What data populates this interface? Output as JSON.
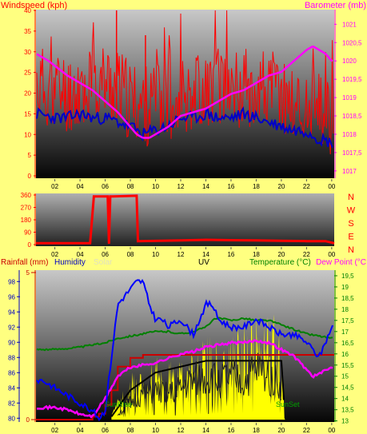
{
  "colors": {
    "background": "#ffff80",
    "wind": "#ff0000",
    "gust": "#ff0000",
    "baro": "#ff00ff",
    "dir": "#ff0000",
    "humidity": "#0000ff",
    "temp": "#008000",
    "dew": "#ff00ff",
    "rain": "#cc0000",
    "solar": "#ffff00",
    "solar_max": "#000000",
    "uv": "#000000"
  },
  "chart_data": [
    {
      "type": "line",
      "id": "wind-baro",
      "title": "",
      "left_axis_label": "Windspeed (kph)",
      "right_axis_label": "Barometer (mb)",
      "left_ticks": [
        "0",
        "5",
        "10",
        "15",
        "20",
        "25",
        "30",
        "35",
        "40"
      ],
      "left_ylim": [
        0,
        40
      ],
      "right_ticks": [
        "1017",
        "1017,5",
        "1018",
        "1018,5",
        "1019",
        "1019,5",
        "1020",
        "1020,5",
        "1021"
      ],
      "right_ylim": [
        1016.8,
        1021.4
      ],
      "x_ticks": [
        "02",
        "04",
        "06",
        "08",
        "10",
        "12",
        "14",
        "16",
        "18",
        "20",
        "22",
        "00"
      ],
      "x_range_hours": [
        0.5,
        24.2
      ],
      "grid": false,
      "series": [
        {
          "axis": "left",
          "color": "#ff0000",
          "style": "noisy",
          "x": [
            0.5,
            2,
            3,
            4,
            5,
            6,
            7,
            8,
            9,
            10,
            11,
            12,
            13,
            14,
            15,
            16,
            17,
            18,
            19,
            20,
            21,
            22,
            23,
            24
          ],
          "y": [
            22,
            21,
            20,
            21,
            22,
            23,
            21,
            18,
            17,
            17,
            18,
            20,
            21,
            21,
            22,
            22,
            21,
            22,
            21,
            20,
            17,
            16,
            15,
            14
          ]
        },
        {
          "axis": "left",
          "color": "#0000c8",
          "style": "lowamp",
          "x": [
            0.5,
            2,
            3,
            4,
            5,
            6,
            7,
            8,
            9,
            10,
            11,
            12,
            13,
            14,
            15,
            16,
            17,
            18,
            19,
            20,
            21,
            22,
            23,
            24
          ],
          "y": [
            15,
            14,
            14,
            15,
            14,
            14,
            13,
            12,
            10,
            11,
            12,
            14,
            14,
            15,
            14,
            14,
            15,
            14,
            13,
            12,
            11,
            11,
            9,
            8
          ]
        },
        {
          "axis": "right",
          "color": "#ff00ff",
          "style": "smooth",
          "x": [
            0.5,
            1.5,
            3,
            4,
            5,
            6,
            7,
            8,
            8.5,
            9,
            9.5,
            10,
            11,
            12,
            13,
            14,
            15,
            16,
            17,
            18,
            19,
            20,
            21,
            22,
            22.5,
            23,
            23.5,
            24
          ],
          "y": [
            1020.2,
            1020.0,
            1019.6,
            1019.4,
            1019.2,
            1018.9,
            1018.6,
            1018.2,
            1018.0,
            1017.9,
            1017.9,
            1018.0,
            1018.2,
            1018.5,
            1018.6,
            1018.7,
            1018.9,
            1019.1,
            1019.2,
            1019.4,
            1019.6,
            1019.7,
            1020.0,
            1020.3,
            1020.4,
            1020.3,
            1020.2,
            1020.0
          ]
        }
      ]
    },
    {
      "type": "line",
      "id": "wind-direction",
      "title": "",
      "left_ticks": [
        "0",
        "90",
        "180",
        "270",
        "360"
      ],
      "right_ticks": [
        "N",
        "W",
        "S",
        "E",
        "N"
      ],
      "ylim": [
        0,
        360
      ],
      "x_ticks": [
        "02",
        "04",
        "06",
        "08",
        "10",
        "12",
        "14",
        "16",
        "18",
        "20",
        "22",
        "00"
      ],
      "series": [
        {
          "color": "#ff0000",
          "type": "step",
          "x": [
            0.5,
            4.8,
            5.1,
            6.2,
            6.3,
            6.4,
            6.6,
            8.5,
            8.6,
            12,
            14,
            16,
            18,
            20,
            22,
            23.5,
            24.2
          ],
          "y": [
            10,
            10,
            350,
            350,
            5,
            350,
            350,
            355,
            25,
            30,
            35,
            32,
            30,
            28,
            25,
            25,
            10
          ]
        }
      ]
    },
    {
      "type": "line",
      "id": "rain-hum-temp",
      "title": "",
      "axis_labels": {
        "rainfall": "Rainfall (mm)",
        "humidity": "Humidity",
        "solar": "Solar",
        "uv": "UV",
        "temperature": "Temperature (°C)",
        "dewpoint": "Dew Point (°C"
      },
      "rain_ticks": [
        "0",
        "5"
      ],
      "rain_ylim": [
        0,
        5
      ],
      "humidity_ticks": [
        "80",
        "82",
        "84",
        "86",
        "88",
        "90",
        "92",
        "94",
        "96",
        "98"
      ],
      "humidity_ylim": [
        79.5,
        99.5
      ],
      "temp_ticks": [
        "13",
        "13,5",
        "14",
        "14,5",
        "15",
        "15,5",
        "16",
        "16,5",
        "17",
        "17,5",
        "18",
        "18,5",
        "19",
        "19,5"
      ],
      "temp_ylim": [
        12.95,
        19.75
      ],
      "x_ticks": [
        "02",
        "04",
        "06",
        "08",
        "10",
        "12",
        "14",
        "16",
        "18",
        "20",
        "22",
        "00"
      ],
      "annotations": [
        "SunRise",
        "SunSet"
      ],
      "series": [
        {
          "name": "Humidity",
          "axis": "humidity",
          "color": "#0000ff",
          "x": [
            0.5,
            1,
            2,
            3,
            4,
            5,
            5.5,
            6,
            6.5,
            7,
            7.5,
            8,
            8.5,
            9,
            9.5,
            10,
            10.5,
            11,
            12,
            13,
            14,
            14.5,
            15,
            16,
            17,
            18,
            19,
            20,
            21,
            22,
            23,
            23.5,
            24
          ],
          "y": [
            85,
            85,
            84,
            83,
            82,
            81,
            80,
            81,
            88,
            95,
            96,
            97,
            98,
            98,
            95,
            93,
            93,
            92,
            93,
            91,
            95,
            95,
            93,
            92,
            92,
            93,
            92,
            91,
            91,
            90,
            88,
            90,
            92
          ]
        },
        {
          "name": "Temperature",
          "axis": "temp",
          "color": "#008000",
          "x": [
            0.5,
            2,
            4,
            5,
            6,
            6.5,
            7,
            8,
            9,
            10,
            11,
            12,
            13,
            14,
            14.5,
            15,
            16,
            17,
            18,
            19,
            20,
            21,
            22,
            23,
            24
          ],
          "y": [
            16.2,
            16.2,
            16.3,
            16.4,
            16.5,
            16.6,
            16.7,
            16.8,
            16.9,
            17.0,
            17.0,
            16.9,
            17.0,
            17.2,
            17.5,
            17.6,
            17.5,
            17.6,
            17.5,
            17.5,
            17.3,
            17.1,
            16.9,
            16.8,
            16.7
          ]
        },
        {
          "name": "Dew Point",
          "axis": "temp",
          "color": "#ff00ff",
          "x": [
            0.5,
            2,
            3,
            4,
            5,
            6,
            7,
            8,
            9,
            10,
            11,
            12,
            13,
            14,
            15,
            16,
            17,
            18,
            19,
            20,
            21,
            22,
            22.5,
            23,
            24
          ],
          "y": [
            13.6,
            13.6,
            13.5,
            13.3,
            13.2,
            14.0,
            15.0,
            15.4,
            15.5,
            15.6,
            15.8,
            16.0,
            16.1,
            16.3,
            16.4,
            16.5,
            16.5,
            16.6,
            16.5,
            16.2,
            15.9,
            15.3,
            15.0,
            15.1,
            15.4
          ]
        },
        {
          "name": "Rainfall",
          "axis": "rain",
          "color": "#cc0000",
          "type": "step",
          "x": [
            0.5,
            4.5,
            5,
            5.5,
            6,
            6.5,
            7,
            8,
            9,
            10,
            11,
            12,
            20,
            21,
            24.2
          ],
          "y": [
            0,
            0,
            0.1,
            0.2,
            0.5,
            1.0,
            1.8,
            2.1,
            2.2,
            2.2,
            2.2,
            2.2,
            2.2,
            2.2,
            2.2
          ]
        },
        {
          "name": "Solar",
          "axis": "rain",
          "color": "#ffff00",
          "type": "area",
          "style": "spiky",
          "x": [
            6.5,
            7,
            8,
            9,
            10,
            11,
            12,
            13,
            14,
            15,
            16,
            17,
            18,
            19,
            20,
            20.3
          ],
          "y": [
            0.1,
            0.5,
            1.0,
            1.4,
            1.6,
            1.5,
            1.4,
            1.6,
            1.9,
            2.1,
            2.0,
            2.2,
            2.5,
            2.7,
            2.0,
            0.0
          ]
        },
        {
          "name": "Solar max",
          "axis": "rain",
          "color": "#000000",
          "x": [
            6.5,
            8,
            10,
            12,
            14,
            16,
            18,
            20,
            20.3
          ],
          "y": [
            0.1,
            1.0,
            1.6,
            1.8,
            2.0,
            2.0,
            2.0,
            2.0,
            0.0
          ]
        },
        {
          "name": "UV",
          "axis": "rain",
          "color": "#202020",
          "style": "spiky",
          "x": [
            7,
            8,
            9,
            10,
            11,
            12,
            13,
            14,
            15,
            16,
            17,
            18,
            19,
            20
          ],
          "y": [
            0.2,
            0.6,
            0.9,
            1.0,
            0.9,
            1.1,
            1.4,
            1.5,
            1.4,
            1.5,
            1.3,
            1.8,
            1.6,
            1.2
          ]
        }
      ]
    }
  ]
}
